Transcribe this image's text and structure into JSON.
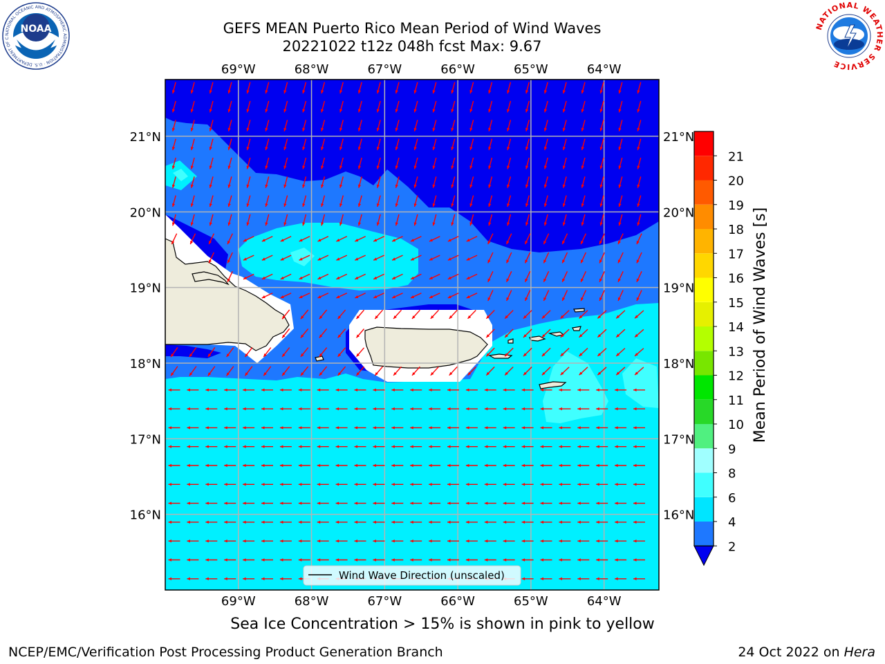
{
  "title": {
    "line1": "GEFS MEAN Puerto Rico Mean Period of Wind Waves",
    "line2": "20221022 t12z 048h fcst   Max: 9.67"
  },
  "subtitle": "Sea Ice Concentration > 15% is shown in pink to yellow",
  "footer": {
    "left": "NCEP/EMC/Verification Post Processing Product Generation Branch",
    "date": "24 Oct 2022 on ",
    "machine": "Hera"
  },
  "map": {
    "lon_labels": [
      "69°W",
      "68°W",
      "67°W",
      "66°W",
      "65°W",
      "64°W"
    ],
    "lat_labels": [
      "21°N",
      "20°N",
      "19°N",
      "18°N",
      "17°N",
      "16°N"
    ],
    "extent": {
      "lon": [
        -70.0,
        -63.25
      ],
      "lat": [
        15.0,
        21.75
      ]
    },
    "legend": "Wind Wave Direction (unscaled)",
    "wave_direction_regions": [
      {
        "region": "north of 19.5°N",
        "heading": "toward SSW"
      },
      {
        "region": "19°N–19.8°N central",
        "heading": "toward WSW"
      },
      {
        "region": "18°N–19°N",
        "heading": "toward SW"
      },
      {
        "region": "south of 17.9°N",
        "heading": "toward W"
      }
    ]
  },
  "colorbar": {
    "label": "Mean Period of Wind Waves [s]",
    "ticks": [
      "2",
      "4",
      "6",
      "8",
      "9",
      "10",
      "11",
      "12",
      "13",
      "14",
      "15",
      "16",
      "17",
      "18",
      "19",
      "20",
      "21"
    ],
    "colors": [
      "#0000f0",
      "#1e78ff",
      "#00e5ff",
      "#40ffff",
      "#a0ffff",
      "#50f080",
      "#28d828",
      "#00e600",
      "#78e600",
      "#b4ff00",
      "#e6f000",
      "#ffff00",
      "#ffd700",
      "#ffb400",
      "#ff8c00",
      "#ff5a00",
      "#ff2800",
      "#ff0000"
    ]
  },
  "logos": {
    "noaa": "NOAA",
    "noaa_ring": "NATIONAL OCEANIC AND ATMOSPHERIC ADMINISTRATION · U.S. DEPARTMENT OF COMMERCE",
    "nws_ring": "NATIONAL WEATHER SERVICE"
  },
  "colors": {
    "land": "#eeecdc",
    "coast": "#000000",
    "grid": "#b4b4b4",
    "arrow": "#ff0000"
  }
}
